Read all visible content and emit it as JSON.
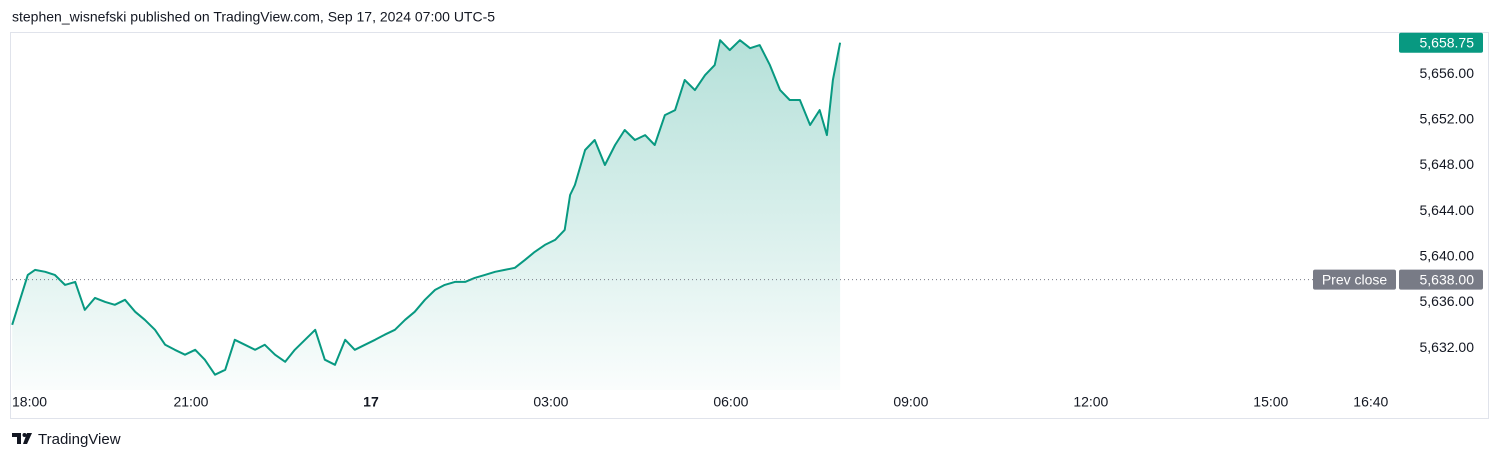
{
  "header": {
    "text": "stephen_wisnefski published on TradingView.com, Sep 17, 2024 07:00 UTC-5"
  },
  "footer": {
    "brand": "TradingView"
  },
  "chart_data": {
    "type": "area",
    "color": "#089981",
    "x": [
      18.02,
      18.15,
      18.28,
      18.4,
      18.57,
      18.73,
      18.9,
      19.07,
      19.23,
      19.4,
      19.57,
      19.73,
      19.9,
      20.07,
      20.23,
      20.4,
      20.57,
      20.73,
      20.9,
      21.07,
      21.23,
      21.4,
      21.57,
      21.73,
      21.9,
      22.07,
      22.23,
      22.4,
      22.57,
      22.73,
      22.9,
      23.07,
      23.23,
      23.4,
      23.57,
      23.73,
      23.9,
      24.07,
      24.23,
      24.4,
      24.57,
      24.73,
      24.9,
      25.07,
      25.23,
      25.4,
      25.57,
      25.73,
      25.9,
      26.07,
      26.23,
      26.4,
      26.57,
      26.73,
      26.9,
      27.07,
      27.23,
      27.32,
      27.4,
      27.57,
      27.73,
      27.9,
      28.07,
      28.23,
      28.4,
      28.57,
      28.73,
      28.9,
      29.07,
      29.23,
      29.4,
      29.57,
      29.73,
      29.82,
      29.98,
      30.15,
      30.32,
      30.48,
      30.65,
      30.82,
      30.98,
      31.15,
      31.32,
      31.48,
      31.6,
      31.7,
      31.82
    ],
    "values": [
      5634.04,
      5636.23,
      5638.41,
      5638.85,
      5638.68,
      5638.41,
      5637.54,
      5637.8,
      5635.35,
      5636.4,
      5636.05,
      5635.79,
      5636.23,
      5635.18,
      5634.48,
      5633.6,
      5632.29,
      5631.85,
      5631.42,
      5631.85,
      5630.98,
      5629.67,
      5630.1,
      5632.73,
      5632.29,
      5631.85,
      5632.29,
      5631.42,
      5630.8,
      5631.85,
      5632.73,
      5633.6,
      5630.98,
      5630.54,
      5632.73,
      5631.85,
      5632.29,
      5632.73,
      5633.17,
      5633.6,
      5634.48,
      5635.18,
      5636.23,
      5637.1,
      5637.54,
      5637.8,
      5637.8,
      5638.15,
      5638.41,
      5638.68,
      5638.85,
      5639.03,
      5639.73,
      5640.43,
      5641.04,
      5641.48,
      5642.35,
      5645.41,
      5646.29,
      5649.35,
      5650.23,
      5648.04,
      5649.79,
      5651.1,
      5650.23,
      5650.66,
      5649.79,
      5652.41,
      5652.85,
      5655.48,
      5654.6,
      5655.91,
      5656.79,
      5658.97,
      5658.1,
      5658.97,
      5658.27,
      5658.54,
      5656.79,
      5654.6,
      5653.73,
      5653.73,
      5651.54,
      5652.85,
      5650.66,
      5655.48,
      5658.75
    ],
    "xlim": [
      18,
      41.12
    ],
    "ylim": [
      5628.33,
      5659.6
    ],
    "xticks": [
      {
        "value": 18,
        "label": "18:00"
      },
      {
        "value": 21,
        "label": "21:00"
      },
      {
        "value": 24,
        "label": "17"
      },
      {
        "value": 27,
        "label": "03:00"
      },
      {
        "value": 30,
        "label": "06:00"
      },
      {
        "value": 33,
        "label": "09:00"
      },
      {
        "value": 36,
        "label": "12:00"
      },
      {
        "value": 39,
        "label": "15:00"
      },
      {
        "value": 40.667,
        "label": "16:40"
      }
    ],
    "yticks": [
      {
        "value": 5632,
        "label": "5,632.00"
      },
      {
        "value": 5636,
        "label": "5,636.00"
      },
      {
        "value": 5640,
        "label": "5,640.00"
      },
      {
        "value": 5644,
        "label": "5,644.00"
      },
      {
        "value": 5648,
        "label": "5,648.00"
      },
      {
        "value": 5652,
        "label": "5,652.00"
      },
      {
        "value": 5656,
        "label": "5,656.00"
      }
    ],
    "last_price": {
      "value": 5658.75,
      "label": "5,658.75"
    },
    "prev_close": {
      "name": "Prev close",
      "value": 5638,
      "label": "5,638.00"
    },
    "grid": false
  }
}
